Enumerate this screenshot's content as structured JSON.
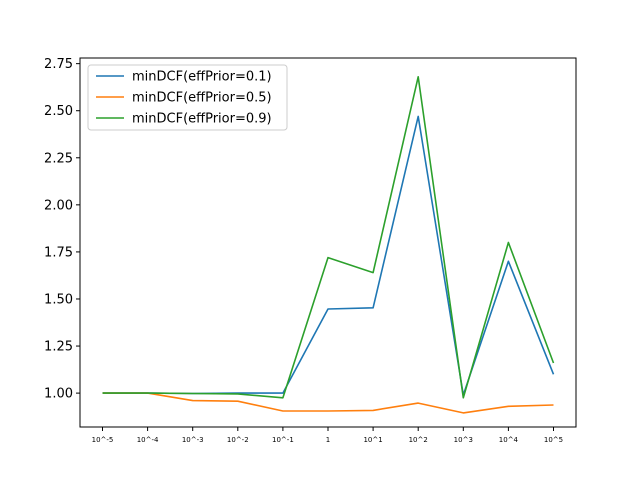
{
  "chart_data": {
    "type": "line",
    "title": "",
    "xlabel": "",
    "ylabel": "",
    "categories": [
      "10^-5",
      "10^-4",
      "10^-3",
      "10^-2",
      "10^-1",
      "1",
      "10^1",
      "10^2",
      "10^3",
      "10^4",
      "10^5"
    ],
    "ylim": [
      0.82,
      2.78
    ],
    "yticks": [
      "1.00",
      "1.25",
      "1.50",
      "1.75",
      "2.00",
      "2.25",
      "2.50",
      "2.75"
    ],
    "grid": false,
    "legend_position": "top-left",
    "series": [
      {
        "name": "minDCF(effPrior=0.1)",
        "color": "#1f77b4",
        "values": [
          1.0,
          1.0,
          0.998,
          1.0,
          1.0,
          1.447,
          1.453,
          2.47,
          0.99,
          1.7,
          1.1
        ]
      },
      {
        "name": "minDCF(effPrior=0.5)",
        "color": "#ff7f0e",
        "values": [
          1.0,
          1.0,
          0.96,
          0.957,
          0.905,
          0.905,
          0.908,
          0.947,
          0.895,
          0.93,
          0.937
        ]
      },
      {
        "name": "minDCF(effPrior=0.9)",
        "color": "#2ca02c",
        "values": [
          1.0,
          1.0,
          0.998,
          0.996,
          0.975,
          1.72,
          1.64,
          2.68,
          0.975,
          1.8,
          1.16
        ]
      }
    ]
  }
}
